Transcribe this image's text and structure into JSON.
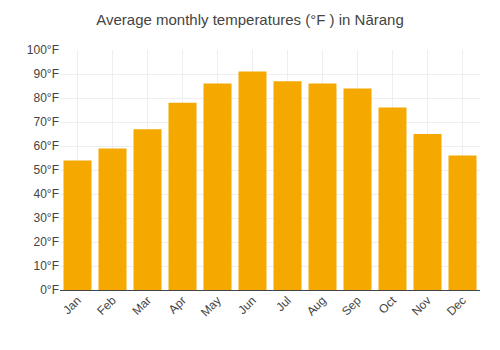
{
  "chart_data": {
    "type": "bar",
    "title": "Average monthly temperatures (°F ) in Nārang",
    "categories": [
      "Jan",
      "Feb",
      "Mar",
      "Apr",
      "May",
      "Jun",
      "Jul",
      "Aug",
      "Sep",
      "Oct",
      "Nov",
      "Dec"
    ],
    "values": [
      54,
      59,
      67,
      78,
      86,
      91,
      87,
      86,
      84,
      76,
      65,
      56
    ],
    "color": "#F5A800",
    "ylim": [
      0,
      100
    ],
    "yticks": [
      {
        "value": 0,
        "label": "0°F"
      },
      {
        "value": 10,
        "label": "10°F"
      },
      {
        "value": 20,
        "label": "20°F"
      },
      {
        "value": 30,
        "label": "30°F"
      },
      {
        "value": 40,
        "label": "40°F"
      },
      {
        "value": 50,
        "label": "50°F"
      },
      {
        "value": 60,
        "label": "60°F"
      },
      {
        "value": 70,
        "label": "70°F"
      },
      {
        "value": 80,
        "label": "80°F"
      },
      {
        "value": 90,
        "label": "90°F"
      },
      {
        "value": 100,
        "label": "100°F"
      }
    ],
    "grid": true
  }
}
